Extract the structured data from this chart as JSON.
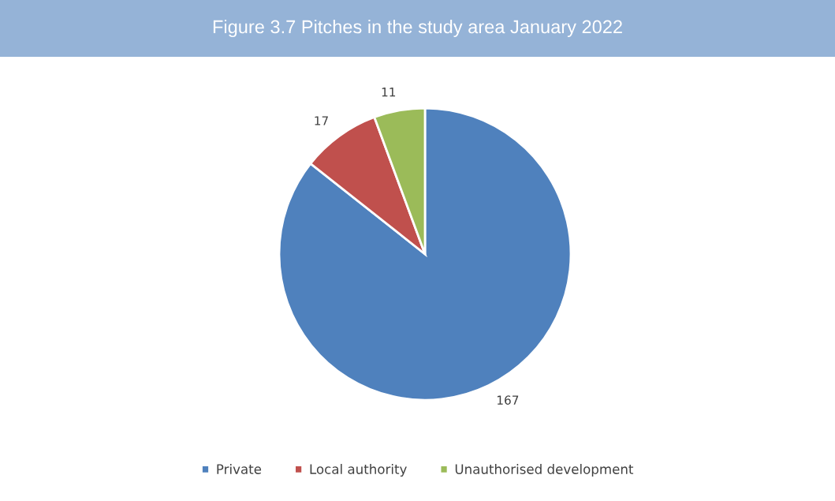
{
  "chart_data": {
    "type": "pie",
    "title": "Figure 3.7 Pitches in the study area January 2022",
    "categories": [
      "Private",
      "Local authority",
      "Unauthorised development"
    ],
    "values": [
      167,
      17,
      11
    ],
    "colors": [
      "#4f81bd",
      "#c0504d",
      "#9bbb59"
    ],
    "data_labels": true,
    "legend": "bottom"
  }
}
